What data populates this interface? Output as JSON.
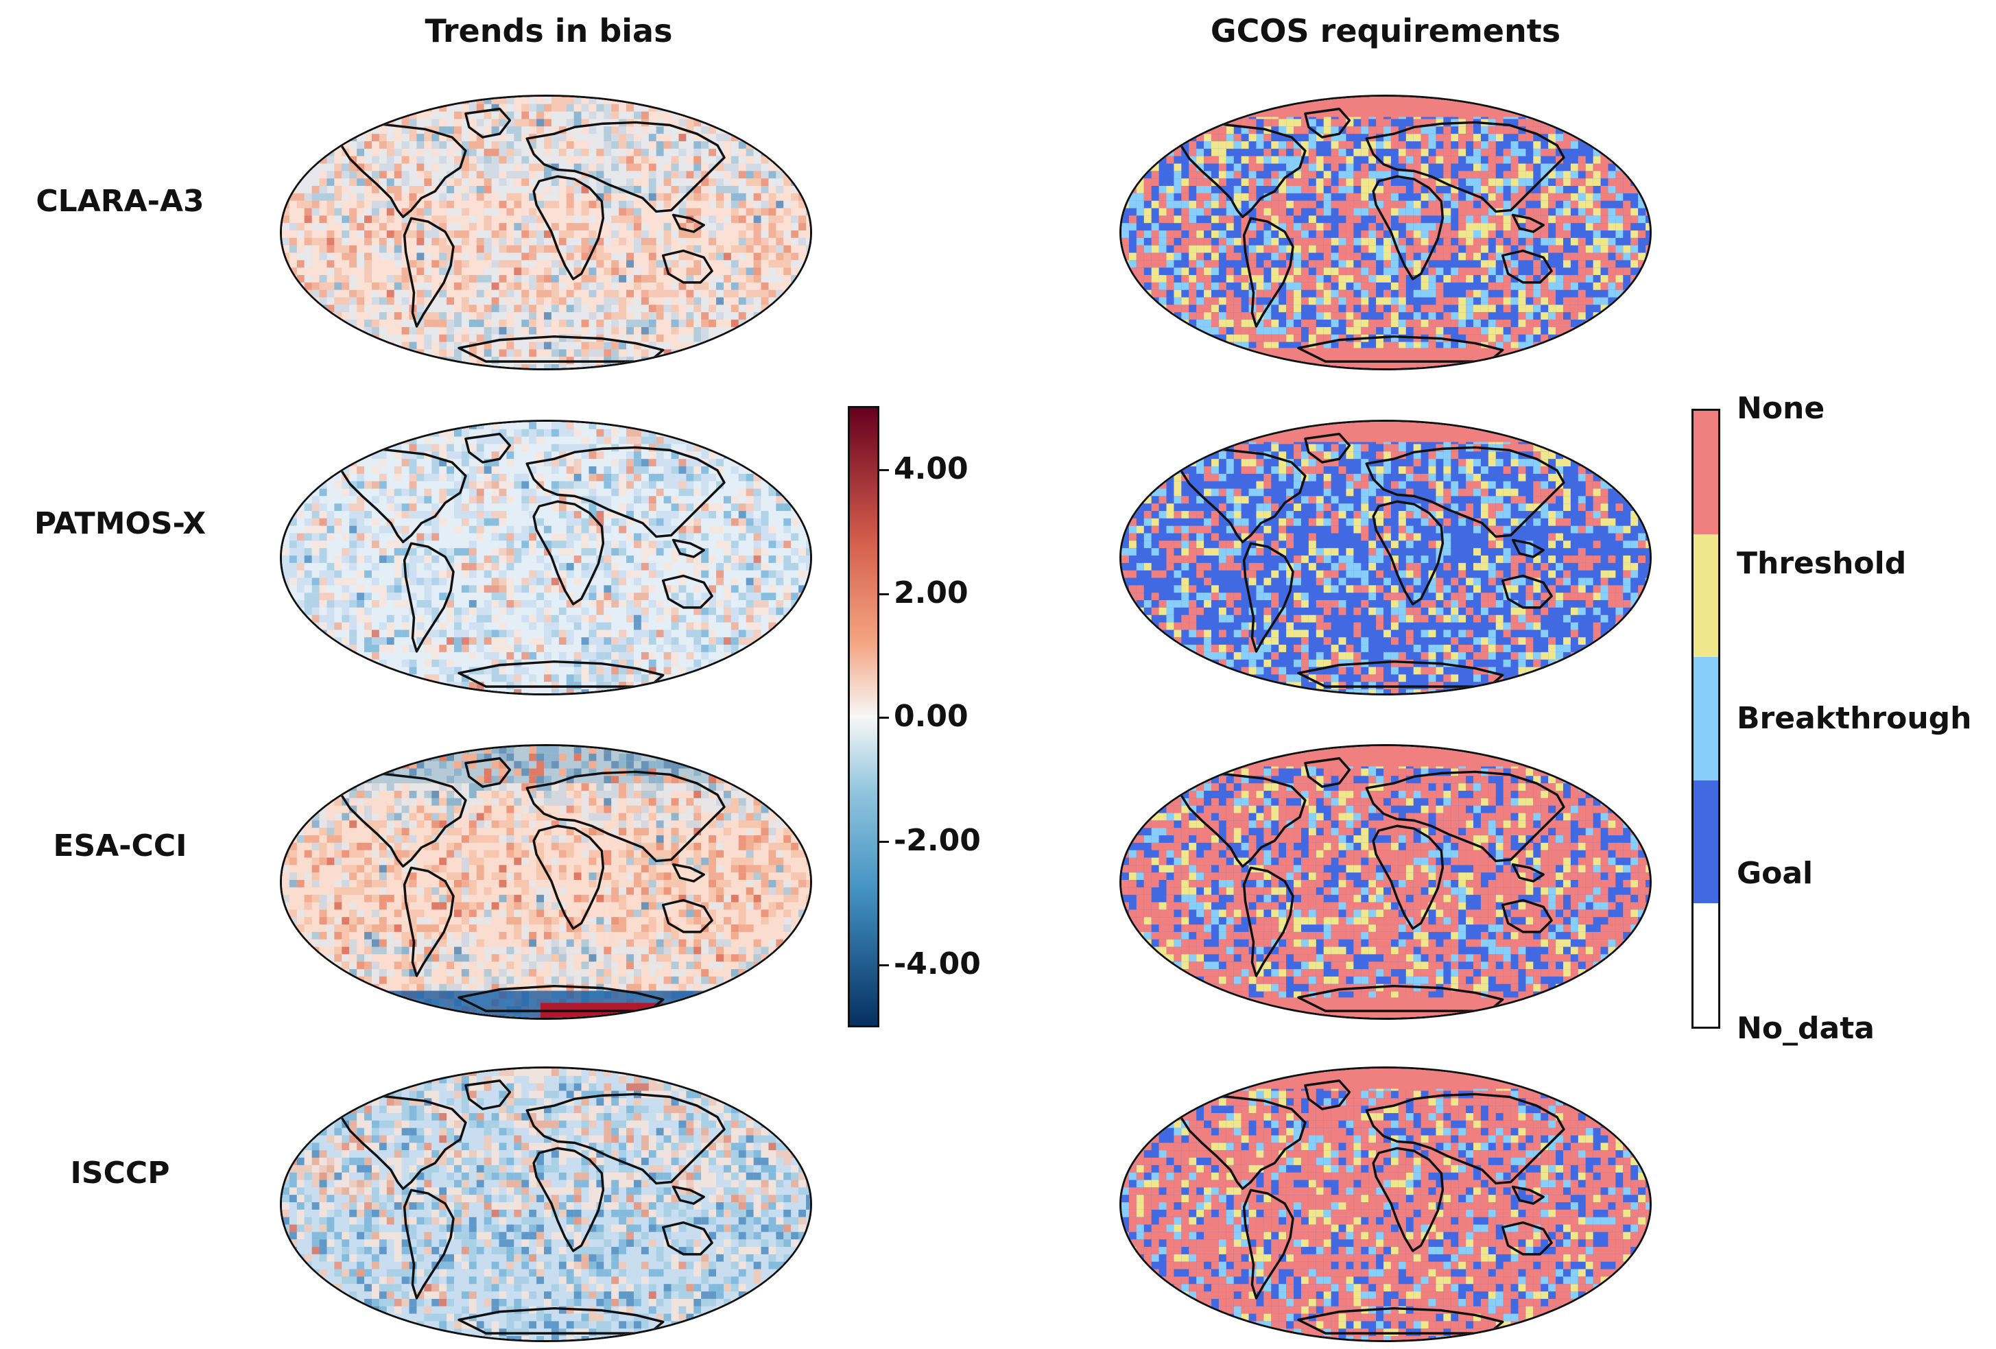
{
  "titles": {
    "left": "Trends in bias",
    "right": "GCOS requirements"
  },
  "rows": [
    {
      "label": "CLARA-A3"
    },
    {
      "label": "PATMOS-X"
    },
    {
      "label": "ESA-CCI"
    },
    {
      "label": "ISCCP"
    }
  ],
  "bias_colorbar": {
    "colormap": "RdBu_r",
    "vmin": -5,
    "vmax": 5,
    "ticks": [
      "4.00",
      "2.00",
      "0.00",
      "-2.00",
      "-4.00"
    ],
    "colors": {
      "high": "#67001f",
      "mid": "#f7f7f7",
      "low": "#053061"
    }
  },
  "gcos_colorbar": {
    "categories": [
      "None",
      "Threshold",
      "Breakthrough",
      "Goal",
      "No_data"
    ],
    "colors": {
      "None": "#f08080",
      "Threshold": "#f0e68c",
      "Breakthrough": "#87cefa",
      "Goal": "#4169e1",
      "No_data": "#ffffff"
    }
  },
  "map_projection": "Robinson",
  "coastline_color": "#111111"
}
